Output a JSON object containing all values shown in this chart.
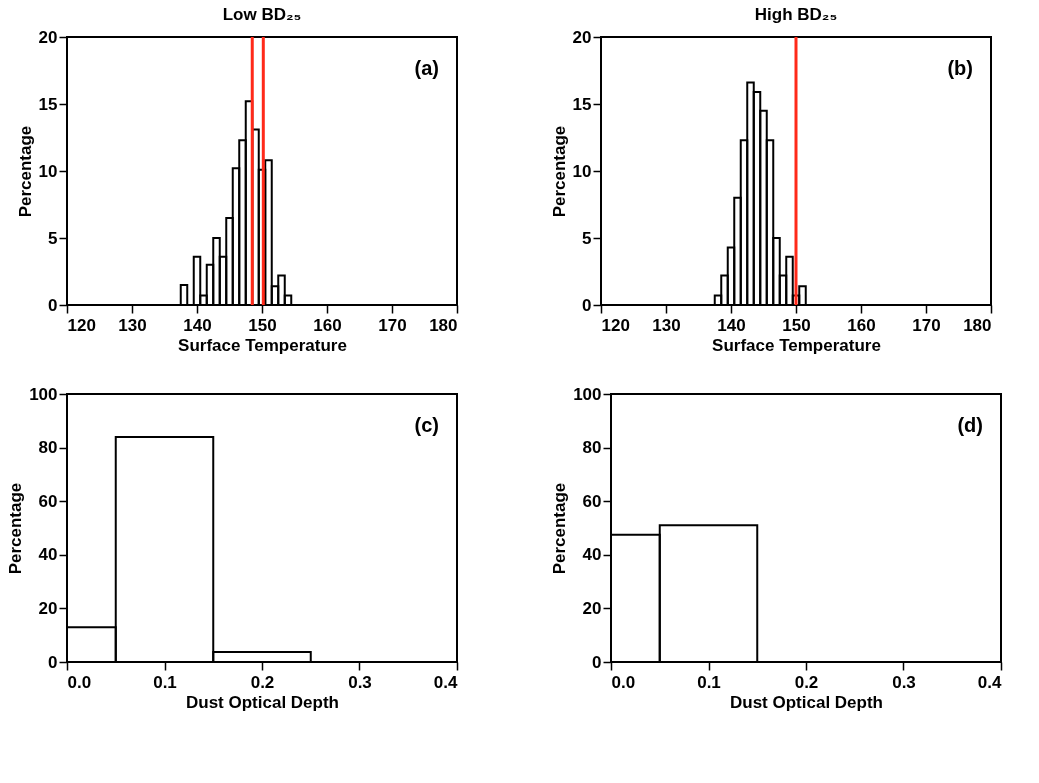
{
  "chart_data": [
    {
      "type": "histogram",
      "title": "Low BD₂₅",
      "xlabel": "Surface Temperature",
      "ylabel": "Percentage",
      "color": "#000000",
      "annotations": [
        "(a)"
      ],
      "bins": [
        137.5,
        138.5,
        139.5,
        140.5,
        141.5,
        142.5,
        143.5,
        144.5,
        145.5,
        146.5,
        147.5,
        148.5,
        149.5,
        150.5,
        151.5,
        152.5,
        153.5,
        154.5
      ],
      "values": [
        1.5,
        0,
        3.6,
        0.7,
        3.0,
        5.0,
        3.6,
        6.5,
        10.2,
        12.3,
        15.2,
        13.1,
        10.1,
        10.8,
        1.4,
        2.2,
        0.7
      ],
      "xlim": [
        120,
        180
      ],
      "xticks": [
        120,
        130,
        140,
        150,
        160,
        170,
        180
      ],
      "ylim": [
        0,
        20
      ],
      "yticks": [
        0,
        5,
        10,
        15,
        20
      ],
      "ref_lines": [
        {
          "axis": "x",
          "value": 148.5,
          "color": "#ff2a1a"
        },
        {
          "axis": "x",
          "value": 150.2,
          "color": "#ff2a1a"
        }
      ]
    },
    {
      "type": "histogram",
      "title": "High BD₂₅",
      "xlabel": "Surface Temperature",
      "ylabel": "Percentage",
      "color": "#000000",
      "annotations": [
        "(b)"
      ],
      "bins": [
        137.5,
        138.5,
        139.5,
        140.5,
        141.5,
        142.5,
        143.5,
        144.5,
        145.5,
        146.5,
        147.5,
        148.5,
        149.5,
        150.5,
        151.5
      ],
      "values": [
        0.7,
        2.2,
        4.3,
        8.0,
        12.3,
        16.6,
        15.9,
        14.5,
        12.3,
        5.0,
        2.2,
        3.6,
        0.7,
        1.4
      ],
      "xlim": [
        120,
        180
      ],
      "xticks": [
        120,
        130,
        140,
        150,
        160,
        170,
        180
      ],
      "ylim": [
        0,
        20
      ],
      "yticks": [
        0,
        5,
        10,
        15,
        20
      ],
      "ref_lines": [
        {
          "axis": "x",
          "value": 150,
          "color": "#ff2a1a"
        }
      ]
    },
    {
      "type": "histogram",
      "xlabel": "Dust Optical Depth",
      "ylabel": "Percentage",
      "color": "#000000",
      "annotations": [
        "(c)"
      ],
      "bins": [
        0,
        0.05,
        0.15,
        0.25
      ],
      "values": [
        13,
        84,
        3.7
      ],
      "xlim": [
        0,
        0.4
      ],
      "xticks": [
        {
          "value": 0,
          "label": "0.0"
        },
        0.1,
        0.2,
        0.3,
        0.4
      ],
      "ylim": [
        0,
        100
      ],
      "yticks": [
        0,
        20,
        40,
        60,
        80,
        100
      ]
    },
    {
      "type": "histogram",
      "xlabel": "Dust Optical Depth",
      "ylabel": "Percentage",
      "color": "#000000",
      "annotations": [
        "(d)"
      ],
      "bins": [
        0,
        0.05,
        0.15
      ],
      "values": [
        47.5,
        51
      ],
      "xlim": [
        0,
        0.4
      ],
      "xticks": [
        {
          "value": 0,
          "label": "0.0"
        },
        0.1,
        0.2,
        0.3,
        0.4
      ],
      "ylim": [
        0,
        100
      ],
      "yticks": [
        0,
        20,
        40,
        60,
        80,
        100
      ]
    }
  ]
}
